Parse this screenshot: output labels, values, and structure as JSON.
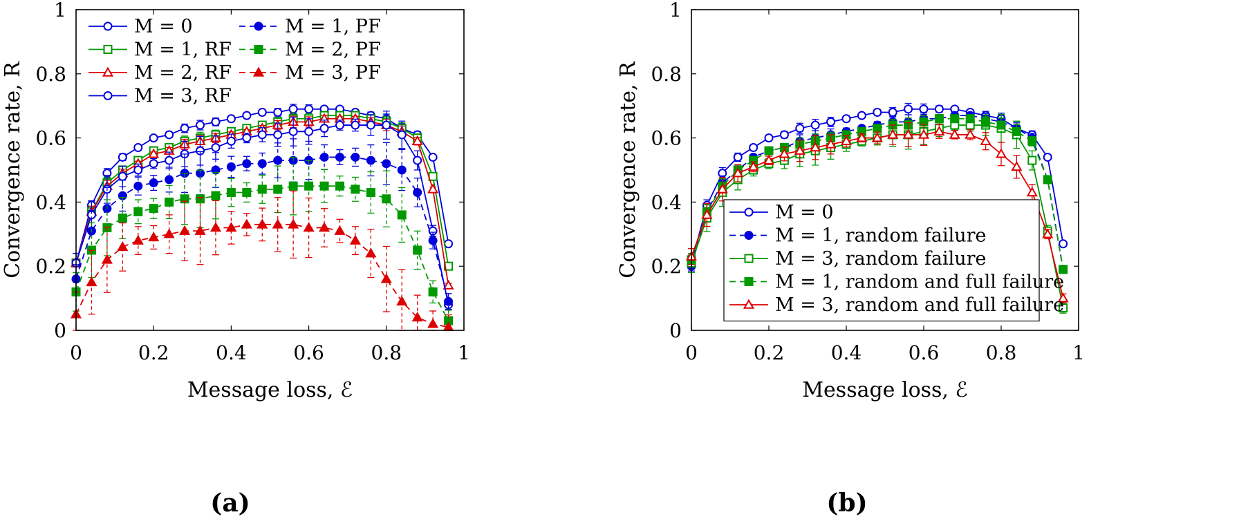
{
  "chart_data": [
    {
      "type": "line",
      "caption": "(a)",
      "xlabel": "Message loss, ℰ",
      "ylabel": "Convergence rate, R",
      "xlim": [
        0,
        1
      ],
      "ylim": [
        0,
        1
      ],
      "xticks": [
        "0",
        "0.2",
        "0.4",
        "0.6",
        "0.8",
        "1"
      ],
      "yticks": [
        "0",
        "0.2",
        "0.4",
        "0.6",
        "0.8",
        "1"
      ],
      "legend_position": "top-left",
      "x": [
        0,
        0.04,
        0.08,
        0.12,
        0.16,
        0.2,
        0.24,
        0.28,
        0.32,
        0.36,
        0.4,
        0.44,
        0.48,
        0.52,
        0.56,
        0.6,
        0.64,
        0.68,
        0.72,
        0.76,
        0.8,
        0.84,
        0.88,
        0.92,
        0.96
      ],
      "series": [
        {
          "name": "M = 0",
          "color": "#0000dd",
          "dash": false,
          "marker": "open-circle",
          "err": 0.01,
          "values": [
            0.21,
            0.39,
            0.49,
            0.54,
            0.57,
            0.6,
            0.61,
            0.63,
            0.64,
            0.65,
            0.66,
            0.67,
            0.68,
            0.68,
            0.69,
            0.69,
            0.69,
            0.69,
            0.68,
            0.67,
            0.66,
            0.63,
            0.61,
            0.54,
            0.27
          ]
        },
        {
          "name": "M = 1, RF",
          "color": "#009900",
          "dash": false,
          "marker": "open-square",
          "err": 0.012,
          "values": [
            0.21,
            0.37,
            0.46,
            0.5,
            0.53,
            0.56,
            0.57,
            0.59,
            0.6,
            0.61,
            0.62,
            0.63,
            0.64,
            0.65,
            0.66,
            0.66,
            0.67,
            0.67,
            0.67,
            0.66,
            0.65,
            0.63,
            0.6,
            0.48,
            0.2
          ]
        },
        {
          "name": "M = 2, RF",
          "color": "#dd0000",
          "dash": false,
          "marker": "open-triangle",
          "err": 0.012,
          "values": [
            0.21,
            0.37,
            0.45,
            0.49,
            0.52,
            0.55,
            0.56,
            0.58,
            0.59,
            0.6,
            0.61,
            0.62,
            0.63,
            0.64,
            0.65,
            0.65,
            0.66,
            0.66,
            0.66,
            0.65,
            0.64,
            0.62,
            0.59,
            0.44,
            0.14
          ]
        },
        {
          "name": "M = 3, RF",
          "color": "#0000dd",
          "dash": false,
          "marker": "open-circle",
          "err": 0.03,
          "values": [
            0.21,
            0.36,
            0.44,
            0.48,
            0.5,
            0.52,
            0.53,
            0.55,
            0.56,
            0.57,
            0.59,
            0.6,
            0.61,
            0.61,
            0.62,
            0.62,
            0.63,
            0.64,
            0.64,
            0.64,
            0.64,
            0.61,
            0.53,
            0.31,
            0.08
          ]
        },
        {
          "name": "M = 1, PF",
          "color": "#0000dd",
          "dash": true,
          "marker": "filled-circle",
          "err": 0.045,
          "values": [
            0.16,
            0.31,
            0.38,
            0.42,
            0.45,
            0.46,
            0.47,
            0.49,
            0.49,
            0.5,
            0.51,
            0.52,
            0.52,
            0.53,
            0.53,
            0.53,
            0.54,
            0.54,
            0.54,
            0.53,
            0.52,
            0.5,
            0.43,
            0.28,
            0.09
          ]
        },
        {
          "name": "M = 2, PF",
          "color": "#009900",
          "dash": true,
          "marker": "filled-square",
          "err": 0.06,
          "values": [
            0.12,
            0.25,
            0.32,
            0.35,
            0.37,
            0.38,
            0.4,
            0.41,
            0.41,
            0.42,
            0.43,
            0.43,
            0.44,
            0.44,
            0.45,
            0.45,
            0.45,
            0.45,
            0.44,
            0.43,
            0.41,
            0.36,
            0.25,
            0.12,
            0.03
          ]
        },
        {
          "name": "M = 3, PF",
          "color": "#dd0000",
          "dash": true,
          "marker": "filled-triangle",
          "err": 0.07,
          "values": [
            0.05,
            0.15,
            0.22,
            0.26,
            0.28,
            0.29,
            0.3,
            0.31,
            0.31,
            0.32,
            0.32,
            0.33,
            0.33,
            0.33,
            0.33,
            0.32,
            0.32,
            0.31,
            0.28,
            0.24,
            0.16,
            0.09,
            0.04,
            0.02,
            0.01
          ]
        }
      ]
    },
    {
      "type": "line",
      "caption": "(b)",
      "xlabel": "Message loss, ℰ",
      "ylabel": "Convergence rate, R",
      "xlim": [
        0,
        1
      ],
      "ylim": [
        0,
        1
      ],
      "xticks": [
        "0",
        "0.2",
        "0.4",
        "0.6",
        "0.8",
        "1"
      ],
      "yticks": [
        "0",
        "0.2",
        "0.4",
        "0.6",
        "0.8",
        "1"
      ],
      "legend_position": "bottom-center",
      "x": [
        0,
        0.04,
        0.08,
        0.12,
        0.16,
        0.2,
        0.24,
        0.28,
        0.32,
        0.36,
        0.4,
        0.44,
        0.48,
        0.52,
        0.56,
        0.6,
        0.64,
        0.68,
        0.72,
        0.76,
        0.8,
        0.84,
        0.88,
        0.92,
        0.96
      ],
      "series": [
        {
          "name": "M = 0",
          "color": "#0000dd",
          "dash": false,
          "marker": "open-circle",
          "err": 0.012,
          "values": [
            0.21,
            0.39,
            0.49,
            0.54,
            0.57,
            0.6,
            0.61,
            0.63,
            0.64,
            0.65,
            0.66,
            0.67,
            0.68,
            0.68,
            0.69,
            0.69,
            0.69,
            0.69,
            0.68,
            0.67,
            0.66,
            0.63,
            0.61,
            0.54,
            0.27
          ]
        },
        {
          "name": "M = 1, random failure",
          "color": "#0000dd",
          "dash": true,
          "marker": "filled-circle",
          "err": 0.015,
          "values": [
            0.2,
            0.37,
            0.46,
            0.5,
            0.54,
            0.56,
            0.57,
            0.59,
            0.6,
            0.61,
            0.62,
            0.63,
            0.64,
            0.65,
            0.65,
            0.66,
            0.66,
            0.67,
            0.67,
            0.66,
            0.65,
            0.63,
            0.6,
            0.47,
            0.19
          ]
        },
        {
          "name": "M = 3, random failure",
          "color": "#009900",
          "dash": false,
          "marker": "open-square",
          "err": 0.03,
          "values": [
            0.21,
            0.35,
            0.43,
            0.47,
            0.5,
            0.52,
            0.53,
            0.55,
            0.56,
            0.57,
            0.58,
            0.59,
            0.6,
            0.61,
            0.61,
            0.62,
            0.63,
            0.64,
            0.64,
            0.64,
            0.63,
            0.61,
            0.53,
            0.31,
            0.07
          ]
        },
        {
          "name": "M = 1, random and full failure",
          "color": "#009900",
          "dash": true,
          "marker": "filled-square",
          "err": 0.015,
          "values": [
            0.22,
            0.37,
            0.45,
            0.5,
            0.53,
            0.56,
            0.57,
            0.58,
            0.59,
            0.6,
            0.61,
            0.62,
            0.63,
            0.64,
            0.64,
            0.65,
            0.66,
            0.66,
            0.66,
            0.65,
            0.64,
            0.62,
            0.59,
            0.47,
            0.19
          ]
        },
        {
          "name": "M = 3, random and full failure",
          "color": "#dd0000",
          "dash": false,
          "marker": "open-triangle",
          "err": 0.025,
          "values": [
            0.23,
            0.36,
            0.44,
            0.49,
            0.51,
            0.53,
            0.55,
            0.56,
            0.57,
            0.58,
            0.59,
            0.6,
            0.6,
            0.61,
            0.61,
            0.61,
            0.62,
            0.61,
            0.61,
            0.59,
            0.55,
            0.51,
            0.43,
            0.3,
            0.1
          ]
        }
      ]
    }
  ]
}
